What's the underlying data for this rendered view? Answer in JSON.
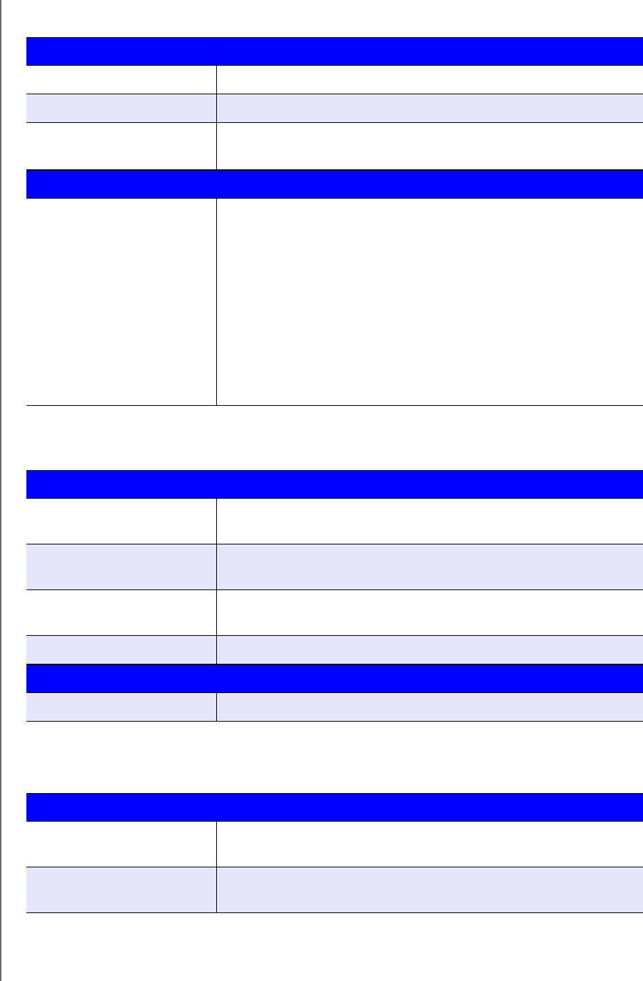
{
  "colors": {
    "header": "#0000ff",
    "alt_row": "#e6e6fb",
    "row": "#ffffff",
    "border": "#000000"
  },
  "tables": [
    {
      "rows": [
        "header",
        "white",
        "alt",
        "white",
        "header",
        "white"
      ]
    },
    {
      "rows": [
        "header",
        "white",
        "alt",
        "white",
        "alt",
        "header",
        "alt"
      ]
    },
    {
      "rows": [
        "header",
        "white",
        "alt"
      ]
    }
  ]
}
